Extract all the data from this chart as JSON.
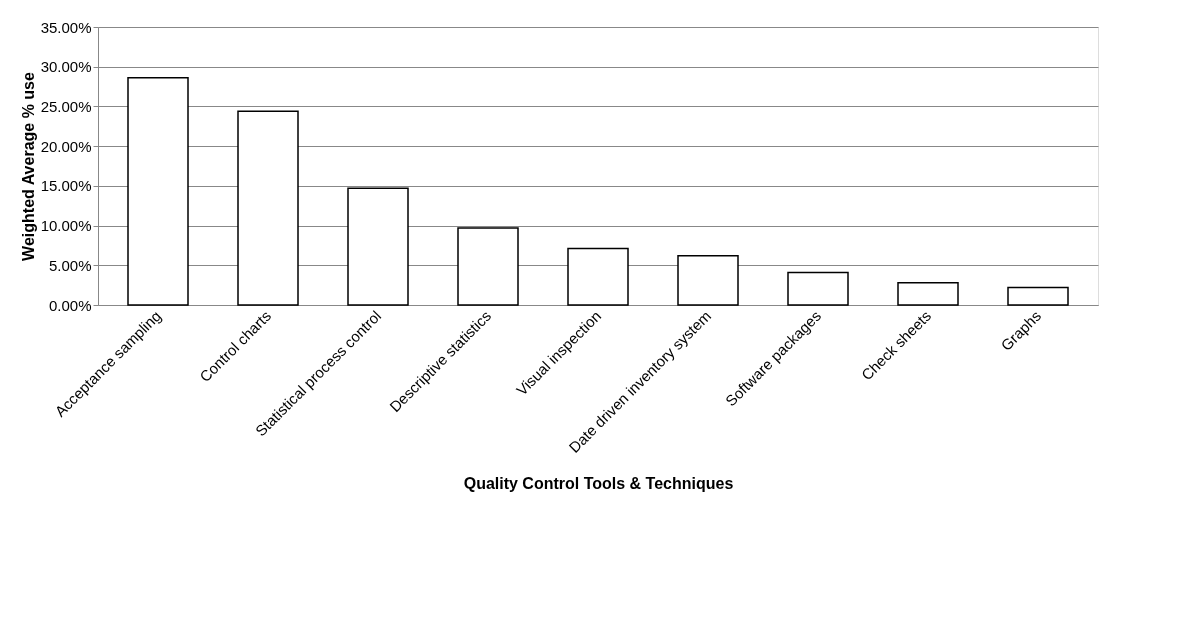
{
  "chart_data": {
    "type": "bar",
    "xlabel": "Quality Control Tools & Techniques",
    "ylabel": "Weighted Average % use",
    "categories": [
      "Acceptance sampling",
      "Control charts",
      "Statistical process control",
      "Descriptive statistics",
      "Visual inspection",
      "Date driven inventory system",
      "Software packages",
      "Check sheets",
      "Graphs"
    ],
    "series": [
      {
        "color": "#ffffff",
        "values": [
          28.6,
          24.4,
          14.7,
          9.7,
          7.1,
          6.2,
          4.1,
          2.8,
          2.2
        ]
      }
    ],
    "ylim": [
      0,
      35
    ],
    "yticks": [
      {
        "value": 0,
        "label": "0.00%"
      },
      {
        "value": 5,
        "label": "5.00%"
      },
      {
        "value": 10,
        "label": "10.00%"
      },
      {
        "value": 15,
        "label": "15.00%"
      },
      {
        "value": 20,
        "label": "20.00%"
      },
      {
        "value": 25,
        "label": "25.00%"
      },
      {
        "value": 30,
        "label": "30.00%"
      },
      {
        "value": 35,
        "label": "35.00%"
      }
    ],
    "grid": "y",
    "legend": false
  }
}
